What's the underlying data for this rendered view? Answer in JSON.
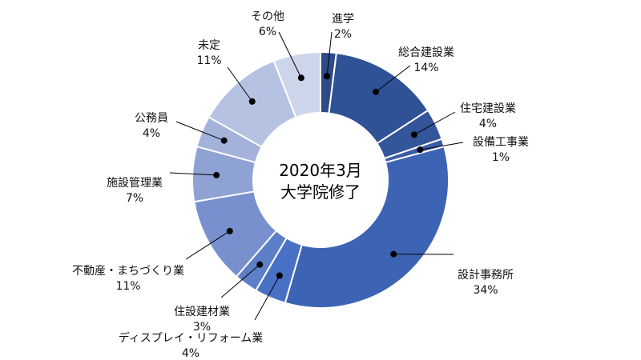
{
  "chart_data": {
    "type": "pie",
    "donut": true,
    "center_text": [
      "2020年3月",
      "大学院修了"
    ],
    "slices": [
      {
        "label": "進学",
        "value": 2,
        "value_label": "2%",
        "color": "#2E4A87"
      },
      {
        "label": "総合建設業",
        "value": 14,
        "value_label": "14%",
        "color": "#2F5296"
      },
      {
        "label": "住宅建設業",
        "value": 4,
        "value_label": "4%",
        "color": "#33559A"
      },
      {
        "label": "設備工事業",
        "value": 1,
        "value_label": "1%",
        "color": "#3A5EA8"
      },
      {
        "label": "設計事務所",
        "value": 34,
        "value_label": "34%",
        "color": "#3D64B4"
      },
      {
        "label": "ディスプレイ・リフォーム業",
        "value": 4,
        "value_label": "4%",
        "color": "#4870C4"
      },
      {
        "label": "住設建材業",
        "value": 3,
        "value_label": "3%",
        "color": "#5C7FC8"
      },
      {
        "label": "不動産・まちづくり業",
        "value": 11,
        "value_label": "11%",
        "color": "#7890CE"
      },
      {
        "label": "施設管理業",
        "value": 7,
        "value_label": "7%",
        "color": "#8FA2D4"
      },
      {
        "label": "公務員",
        "value": 4,
        "value_label": "4%",
        "color": "#A3B2DA"
      },
      {
        "label": "未定",
        "value": 11,
        "value_label": "11%",
        "color": "#B6C2E2"
      },
      {
        "label": "その他",
        "value": 6,
        "value_label": "6%",
        "color": "#CDD5EB"
      }
    ]
  }
}
